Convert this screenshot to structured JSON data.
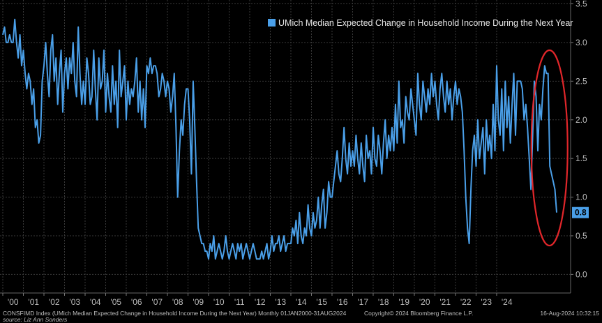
{
  "chart_data": {
    "type": "line",
    "legend": "UMich Median Expected Change in Household Income During the Next Year",
    "legend_placement": "top-right",
    "ylim": [
      -0.15,
      3.55
    ],
    "yticks": [
      "3.5",
      "3.0",
      "2.5",
      "2.0",
      "1.5",
      "1.0",
      "0.5",
      "0.0"
    ],
    "ytick_values": [
      3.5,
      3.0,
      2.5,
      2.0,
      1.5,
      1.0,
      0.5,
      0.0
    ],
    "x_start": "2000-01",
    "x_end": "2024-08",
    "xticks": [
      "'00",
      "'01",
      "'02",
      "'03",
      "'04",
      "'05",
      "'06",
      "'07",
      "'08",
      "'09",
      "'10",
      "'11",
      "'12",
      "'13",
      "'14",
      "'15",
      "'16",
      "'17",
      "'18",
      "'19",
      "'20",
      "'21",
      "'22",
      "'23",
      "'24"
    ],
    "last_value_label": "0.8",
    "grid": true,
    "series": [
      {
        "color": "#4a9fe8",
        "frequency": "monthly",
        "values": [
          3.1,
          3.2,
          3.0,
          3.0,
          3.1,
          3.0,
          3.0,
          3.3,
          3.0,
          2.8,
          3.1,
          2.7,
          2.9,
          2.6,
          2.4,
          2.6,
          2.5,
          2.2,
          2.4,
          1.9,
          2.0,
          1.7,
          1.8,
          2.5,
          2.7,
          3.0,
          2.6,
          2.3,
          2.9,
          3.1,
          2.5,
          2.8,
          2.2,
          2.6,
          2.9,
          2.1,
          2.6,
          2.8,
          2.4,
          2.8,
          2.6,
          3.0,
          2.5,
          2.3,
          3.2,
          2.6,
          2.2,
          2.5,
          2.2,
          2.8,
          2.6,
          2.2,
          2.3,
          2.9,
          2.4,
          2.0,
          2.8,
          2.4,
          2.5,
          2.9,
          2.1,
          2.6,
          2.3,
          2.1,
          2.7,
          2.2,
          2.5,
          1.9,
          2.9,
          2.3,
          2.5,
          2.7,
          2.0,
          2.5,
          2.2,
          2.4,
          2.3,
          2.5,
          2.8,
          2.1,
          2.5,
          2.0,
          2.4,
          1.9,
          2.7,
          2.6,
          2.8,
          2.6,
          2.7,
          2.7,
          2.6,
          2.3,
          2.4,
          2.6,
          2.5,
          2.3,
          2.5,
          2.4,
          2.1,
          2.3,
          2.6,
          1.9,
          1.0,
          1.6,
          2.0,
          1.8,
          2.2,
          2.4,
          2.4,
          2.0,
          1.3,
          2.5,
          1.9,
          1.2,
          0.6,
          0.5,
          0.4,
          0.4,
          0.3,
          0.3,
          0.2,
          0.4,
          0.3,
          0.5,
          0.2,
          0.3,
          0.4,
          0.3,
          0.2,
          0.3,
          0.5,
          0.3,
          0.2,
          0.3,
          0.4,
          0.3,
          0.2,
          0.4,
          0.3,
          0.4,
          0.2,
          0.3,
          0.4,
          0.3,
          0.2,
          0.3,
          0.4,
          0.3,
          0.2,
          0.2,
          0.2,
          0.3,
          0.2,
          0.3,
          0.4,
          0.2,
          0.3,
          0.5,
          0.3,
          0.4,
          0.4,
          0.5,
          0.3,
          0.4,
          0.5,
          0.3,
          0.4,
          0.4,
          0.4,
          0.6,
          0.5,
          0.7,
          0.4,
          0.8,
          0.5,
          0.4,
          0.6,
          0.5,
          0.9,
          0.6,
          0.5,
          0.8,
          0.6,
          0.7,
          1.0,
          0.6,
          0.9,
          1.1,
          0.6,
          0.8,
          1.2,
          1.0,
          1.0,
          1.2,
          1.4,
          1.6,
          1.3,
          1.2,
          1.5,
          1.9,
          1.5,
          1.3,
          1.7,
          1.4,
          1.6,
          1.4,
          1.8,
          1.5,
          1.3,
          1.7,
          1.4,
          1.2,
          1.8,
          1.5,
          1.6,
          1.3,
          1.9,
          1.5,
          1.4,
          1.8,
          1.6,
          1.3,
          1.7,
          2.0,
          1.5,
          1.8,
          1.6,
          1.9,
          1.6,
          2.2,
          1.7,
          2.5,
          1.9,
          2.0,
          1.7,
          2.3,
          2.1,
          2.0,
          2.4,
          2.2,
          2.0,
          1.8,
          2.6,
          2.2,
          2.0,
          2.5,
          2.3,
          2.1,
          2.4,
          2.2,
          2.6,
          2.3,
          2.5,
          2.2,
          2.0,
          2.4,
          2.6,
          2.3,
          2.1,
          2.5,
          2.2,
          2.4,
          2.0,
          2.3,
          2.5,
          2.2,
          2.4,
          2.3,
          2.1,
          1.6,
          1.0,
          0.6,
          0.4,
          1.1,
          1.6,
          1.8,
          1.4,
          2.0,
          1.5,
          1.7,
          1.9,
          1.3,
          2.0,
          1.6,
          1.8,
          1.5,
          2.2,
          1.6,
          2.7,
          2.0,
          1.8,
          2.4,
          1.6,
          2.5,
          1.9,
          2.3,
          1.7,
          2.2,
          2.6,
          1.8,
          2.5,
          2.5,
          2.5,
          2.4,
          2.0,
          2.2,
          1.9,
          1.5,
          1.1,
          1.8,
          2.5,
          2.3,
          1.6,
          2.2,
          2.0,
          2.4,
          2.7,
          2.6,
          2.6,
          1.4,
          1.3,
          1.2,
          1.1,
          0.8
        ]
      }
    ]
  },
  "footer": {
    "left": "CONSFIMD Index (UMich Median Expected Change in Household Income During the Next Year)  Monthly 01JAN2000-31AUG2024",
    "mid": "Copyright© 2024 Bloomberg Finance L.P.",
    "right": "16-Aug-2024 10:32:15",
    "source": "source: Liz Ann Sonders"
  },
  "annotation": {
    "color": "#e0262a",
    "shape": "ellipse"
  }
}
